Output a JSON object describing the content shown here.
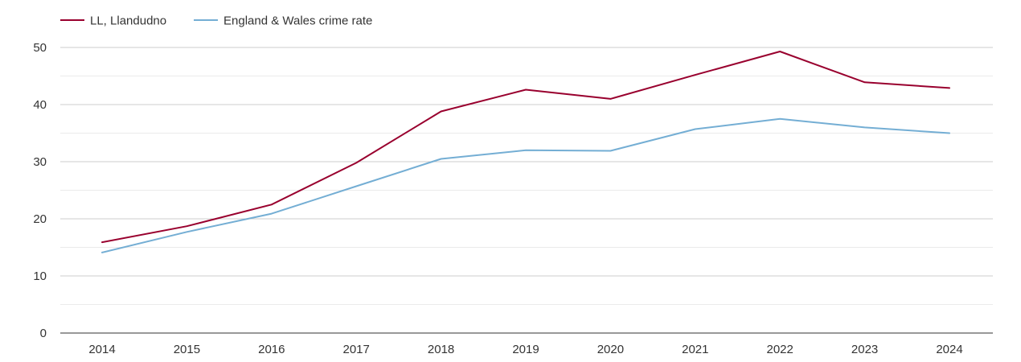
{
  "chart_data": {
    "type": "line",
    "title": "",
    "xlabel": "",
    "ylabel": "",
    "x": [
      "2014",
      "2015",
      "2016",
      "2017",
      "2018",
      "2019",
      "2020",
      "2021",
      "2022",
      "2023",
      "2024"
    ],
    "ylim": [
      0,
      50
    ],
    "yticks": [
      "0",
      "10",
      "20",
      "30",
      "40",
      "50"
    ],
    "grid": true,
    "legend_position": "top-left",
    "series": [
      {
        "name": "LL, Llandudno",
        "color": "#99002e",
        "values": [
          15.9,
          18.7,
          22.5,
          29.8,
          38.8,
          42.6,
          41.0,
          45.2,
          49.3,
          43.9,
          42.9
        ]
      },
      {
        "name": "England & Wales crime rate",
        "color": "#74aed4",
        "values": [
          14.1,
          17.7,
          20.9,
          25.7,
          30.5,
          32.0,
          31.9,
          35.7,
          37.5,
          36.0,
          35.0
        ]
      }
    ]
  }
}
